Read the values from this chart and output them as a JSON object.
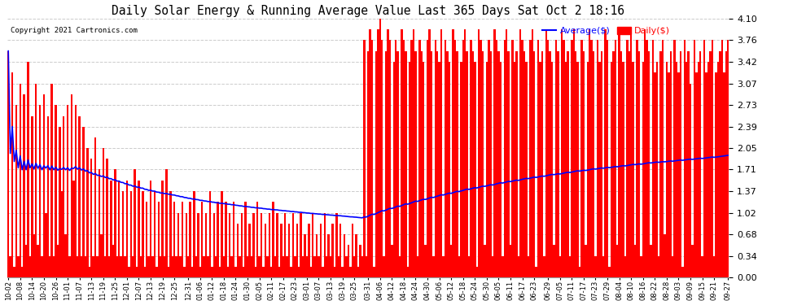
{
  "title": "Daily Solar Energy & Running Average Value Last 365 Days Sat Oct 2 18:16",
  "copyright_text": "Copyright 2021 Cartronics.com",
  "bar_color": "#ff0000",
  "avg_line_color": "#0000ff",
  "background_color": "#ffffff",
  "grid_color": "#cccccc",
  "ylim": [
    0.0,
    4.1
  ],
  "yticks": [
    0.0,
    0.34,
    0.68,
    1.02,
    1.37,
    1.71,
    2.05,
    2.39,
    2.73,
    3.07,
    3.42,
    3.76,
    4.1
  ],
  "legend_avg_label": "Average($)",
  "legend_daily_label": "Daily($)",
  "x_labels": [
    "10-02",
    "10-08",
    "10-14",
    "10-20",
    "10-26",
    "11-01",
    "11-07",
    "11-13",
    "11-19",
    "11-25",
    "12-01",
    "12-07",
    "12-13",
    "12-19",
    "12-25",
    "12-31",
    "01-06",
    "01-12",
    "01-18",
    "01-24",
    "01-30",
    "02-05",
    "02-11",
    "02-17",
    "02-23",
    "03-01",
    "03-07",
    "03-13",
    "03-19",
    "03-25",
    "03-31",
    "04-06",
    "04-12",
    "04-18",
    "04-24",
    "04-30",
    "05-06",
    "05-12",
    "05-18",
    "05-24",
    "05-30",
    "06-05",
    "06-11",
    "06-17",
    "06-23",
    "06-29",
    "07-05",
    "07-11",
    "07-17",
    "07-23",
    "07-29",
    "08-04",
    "08-10",
    "08-16",
    "08-22",
    "08-28",
    "09-03",
    "09-09",
    "09-15",
    "09-21",
    "09-27"
  ],
  "daily_values": [
    3.59,
    0.34,
    3.25,
    0.17,
    2.73,
    0.34,
    3.07,
    0.17,
    2.9,
    0.51,
    3.42,
    0.34,
    2.56,
    0.68,
    3.07,
    0.51,
    2.73,
    0.34,
    2.9,
    1.02,
    2.56,
    0.34,
    3.07,
    0.34,
    2.73,
    0.51,
    2.39,
    1.37,
    2.56,
    0.68,
    2.73,
    0.34,
    2.9,
    1.54,
    2.73,
    0.34,
    2.56,
    0.34,
    2.39,
    0.34,
    2.05,
    0.17,
    1.88,
    0.34,
    2.22,
    0.34,
    1.71,
    0.68,
    2.05,
    0.34,
    1.88,
    0.34,
    1.54,
    0.51,
    1.71,
    0.34,
    1.54,
    0.34,
    1.37,
    0.34,
    1.54,
    0.17,
    1.37,
    0.34,
    1.71,
    0.17,
    1.54,
    0.34,
    1.37,
    0.17,
    1.2,
    0.34,
    1.54,
    0.34,
    1.37,
    0.17,
    1.2,
    0.34,
    1.54,
    0.34,
    1.71,
    0.17,
    1.37,
    0.34,
    1.2,
    0.34,
    1.02,
    0.34,
    1.2,
    0.17,
    1.02,
    0.34,
    1.2,
    0.17,
    1.37,
    0.34,
    1.02,
    0.17,
    1.2,
    0.34,
    1.02,
    0.34,
    1.37,
    0.17,
    1.02,
    0.34,
    1.2,
    0.17,
    1.37,
    0.34,
    1.2,
    0.17,
    1.02,
    0.34,
    1.2,
    0.17,
    0.85,
    0.34,
    1.02,
    0.17,
    1.2,
    0.34,
    0.85,
    0.34,
    1.02,
    0.17,
    1.2,
    0.34,
    1.02,
    0.17,
    0.85,
    0.34,
    1.02,
    0.17,
    1.2,
    0.34,
    1.02,
    0.17,
    0.85,
    0.34,
    1.02,
    0.34,
    0.85,
    0.17,
    1.02,
    0.34,
    0.85,
    0.17,
    1.02,
    0.34,
    0.68,
    0.34,
    0.85,
    0.17,
    1.02,
    0.34,
    0.68,
    0.34,
    0.85,
    0.17,
    1.02,
    0.34,
    0.68,
    0.34,
    0.85,
    0.17,
    1.02,
    0.34,
    0.85,
    0.17,
    0.68,
    0.34,
    0.51,
    0.17,
    0.85,
    0.34,
    0.68,
    0.17,
    0.51,
    0.34,
    3.76,
    0.34,
    3.59,
    3.93,
    3.76,
    0.17,
    3.59,
    3.93,
    4.1,
    3.76,
    0.34,
    3.59,
    3.93,
    3.76,
    0.51,
    3.42,
    3.76,
    3.59,
    0.34,
    3.93,
    3.76,
    3.59,
    0.17,
    3.42,
    3.76,
    3.93,
    3.59,
    0.34,
    3.76,
    3.59,
    3.42,
    0.51,
    3.76,
    3.93,
    3.59,
    0.34,
    3.76,
    3.59,
    3.42,
    3.93,
    0.34,
    3.76,
    3.59,
    3.42,
    0.51,
    3.93,
    3.76,
    3.59,
    0.34,
    3.42,
    3.76,
    3.93,
    3.59,
    0.34,
    3.76,
    3.59,
    3.42,
    0.17,
    3.93,
    3.76,
    3.59,
    0.51,
    3.42,
    3.76,
    3.59,
    0.34,
    3.93,
    3.76,
    3.59,
    3.42,
    0.34,
    3.76,
    3.93,
    3.59,
    0.51,
    3.76,
    3.42,
    3.59,
    0.34,
    3.93,
    3.76,
    3.59,
    3.42,
    0.34,
    3.76,
    3.93,
    3.59,
    0.17,
    3.76,
    3.42,
    3.59,
    0.34,
    3.93,
    3.76,
    3.59,
    3.42,
    0.51,
    3.76,
    3.59,
    0.34,
    3.93,
    3.76,
    3.42,
    3.59,
    0.34,
    3.76,
    3.93,
    3.59,
    3.42,
    0.17,
    3.76,
    3.59,
    0.51,
    3.42,
    3.93,
    3.76,
    3.59,
    0.34,
    3.76,
    3.42,
    3.59,
    0.34,
    3.93,
    3.76,
    0.17,
    3.42,
    3.59,
    3.76,
    0.51,
    3.93,
    3.59,
    3.42,
    0.34,
    3.76,
    3.59,
    3.93,
    3.42,
    0.51,
    3.76,
    3.59,
    0.34,
    3.42,
    3.93,
    3.76,
    3.59,
    0.51,
    3.76,
    3.25,
    3.42,
    0.34,
    3.59,
    3.76,
    0.68,
    3.42,
    3.25,
    3.59,
    0.34,
    3.76,
    3.42,
    3.25,
    3.59,
    0.17,
    3.76,
    3.42,
    3.59,
    3.07,
    0.51,
    3.76,
    3.25,
    3.42,
    3.59,
    0.34,
    3.76,
    3.25,
    3.42,
    3.59,
    3.76,
    0.34,
    3.25,
    3.42,
    3.59,
    3.76,
    3.25,
    3.59,
    3.76
  ]
}
